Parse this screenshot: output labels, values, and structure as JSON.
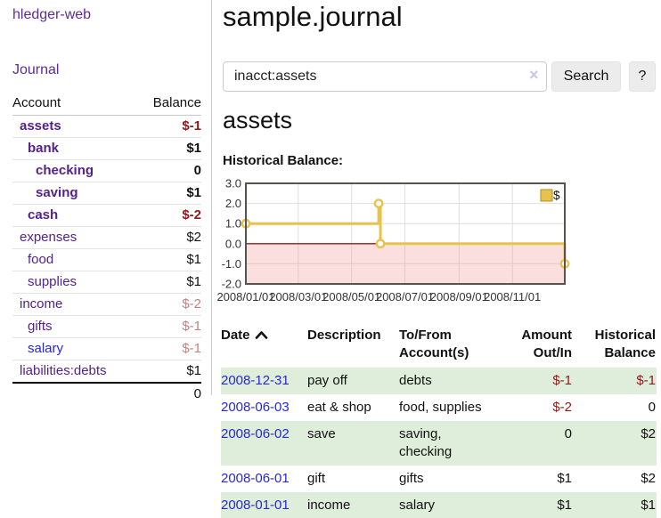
{
  "colors": {
    "nav_purple": "#5c2d91",
    "account_purple": "#53228c",
    "link_blue": "#2727d4",
    "negative_dark_red": "#8f1a1a",
    "negative_muted_red": "#c08383",
    "row_stripe_green": "#dfeeda",
    "series_gold": "#e7c34d",
    "negative_region_pink": "#fadcdc",
    "zero_line_dark_red": "#9b1b1b"
  },
  "sidebar": {
    "brand": "hledger-web",
    "nav": {
      "journal": "Journal"
    },
    "accounts_table": {
      "account_header": "Account",
      "balance_header": "Balance",
      "rows": [
        {
          "name": "assets",
          "balance": "$-1",
          "indent": 0,
          "bold": true,
          "balance_class": "neg"
        },
        {
          "name": "bank",
          "balance": "$1",
          "indent": 1,
          "bold": true,
          "balance_class": ""
        },
        {
          "name": "checking",
          "balance": "0",
          "indent": 2,
          "bold": true,
          "balance_class": ""
        },
        {
          "name": "saving",
          "balance": "$1",
          "indent": 2,
          "bold": true,
          "balance_class": ""
        },
        {
          "name": "cash",
          "balance": "$-2",
          "indent": 1,
          "bold": true,
          "balance_class": "neg"
        },
        {
          "name": "expenses",
          "balance": "$2",
          "indent": 0,
          "bold": false,
          "balance_class": ""
        },
        {
          "name": "food",
          "balance": "$1",
          "indent": 1,
          "bold": false,
          "balance_class": ""
        },
        {
          "name": "supplies",
          "balance": "$1",
          "indent": 1,
          "bold": false,
          "balance_class": ""
        },
        {
          "name": "income",
          "balance": "$-2",
          "indent": 0,
          "bold": false,
          "balance_class": "negm"
        },
        {
          "name": "gifts",
          "balance": "$-1",
          "indent": 1,
          "bold": false,
          "balance_class": "negm"
        },
        {
          "name": "salary",
          "balance": "$-1",
          "indent": 1,
          "bold": false,
          "balance_class": "negm",
          "link_class": "blue"
        },
        {
          "name": "liabilities:debts",
          "balance": "$1",
          "indent": 0,
          "bold": false,
          "balance_class": ""
        }
      ],
      "total": "0"
    }
  },
  "main": {
    "title": "sample.journal",
    "search": {
      "value": "inacct:assets",
      "clear_icon": "×",
      "search_button": "Search",
      "help_button": "?"
    },
    "account_heading": "assets",
    "chart_label": "Historical Balance:"
  },
  "chart_data": {
    "type": "line",
    "title": "Historical Balance",
    "style": "step-after",
    "x_type": "date",
    "xrange": [
      "2008/01/01",
      "2008/12/31"
    ],
    "ylim": [
      -2,
      3
    ],
    "yticks": [
      3,
      2,
      1,
      0,
      -1,
      -2
    ],
    "xticks": [
      "2008/01/01",
      "2008/03/01",
      "2008/05/01",
      "2008/07/01",
      "2008/09/01",
      "2008/11/01"
    ],
    "grid": true,
    "legend_position": "top-right",
    "series": [
      {
        "name": "$",
        "color": "#e7c34d",
        "points": [
          [
            "2008/01/01",
            1
          ],
          [
            "2008/06/01",
            2
          ],
          [
            "2008/06/03",
            0
          ],
          [
            "2008/12/31",
            -1
          ]
        ]
      }
    ],
    "annotations": {
      "negative_region_shaded": true,
      "zero_line_at": 0
    }
  },
  "register": {
    "headers": {
      "date": "Date",
      "description": "Description",
      "accounts": "To/From Account(s)",
      "amount": "Amount Out/In",
      "balance": "Historical Balance"
    },
    "rows": [
      {
        "date": "2008-12-31",
        "description": "pay off",
        "accounts": "debts",
        "amount": "$-1",
        "balance": "$-1"
      },
      {
        "date": "2008-06-03",
        "description": "eat & shop",
        "accounts": "food, supplies",
        "amount": "$-2",
        "balance": "0"
      },
      {
        "date": "2008-06-02",
        "description": "save",
        "accounts": "saving, checking",
        "amount": "0",
        "balance": "$2"
      },
      {
        "date": "2008-06-01",
        "description": "gift",
        "accounts": "gifts",
        "amount": "$1",
        "balance": "$2"
      },
      {
        "date": "2008-01-01",
        "description": "income",
        "accounts": "salary",
        "amount": "$1",
        "balance": "$1"
      }
    ]
  }
}
